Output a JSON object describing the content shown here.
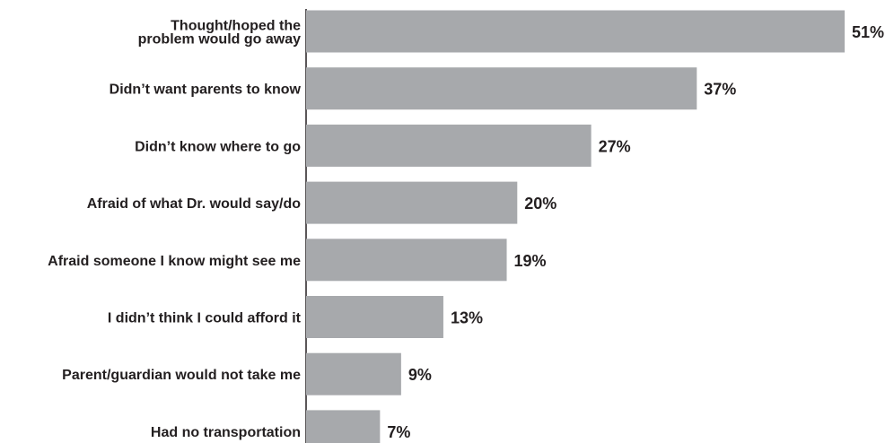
{
  "chart_data": {
    "type": "bar",
    "orientation": "horizontal",
    "categories": [
      [
        "Thought/hoped the",
        "problem would go away"
      ],
      [
        "Didn’t want parents to know"
      ],
      [
        "Didn’t know where to go"
      ],
      [
        "Afraid of what Dr. would say/do"
      ],
      [
        "Afraid someone I know might see me"
      ],
      [
        "I didn’t think I could afford it"
      ],
      [
        "Parent/guardian would not take me"
      ],
      [
        "Had no transportation"
      ]
    ],
    "values": [
      51,
      37,
      27,
      20,
      19,
      13,
      9,
      7
    ],
    "value_labels": [
      "51%",
      "37%",
      "27%",
      "20%",
      "19%",
      "13%",
      "9%",
      "7%"
    ],
    "unit": "%",
    "xlim": [
      0,
      51
    ],
    "grid": false,
    "colors": {
      "bar": "#a7a9ac",
      "axis": "#231f20",
      "text": "#231f20"
    }
  }
}
